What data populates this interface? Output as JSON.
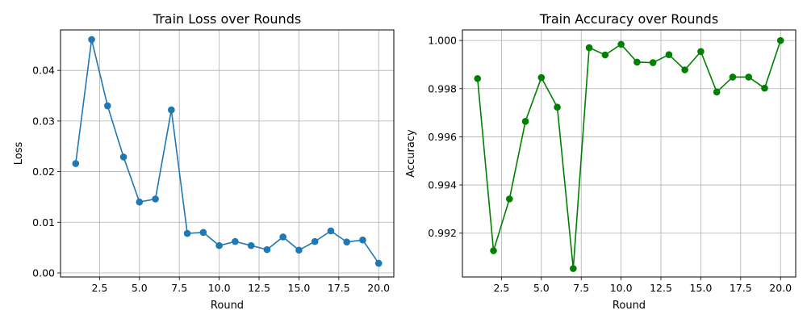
{
  "chart_data": [
    {
      "type": "line",
      "title": "Train Loss over Rounds",
      "xlabel": "Round",
      "ylabel": "Loss",
      "xlim": [
        0.05,
        20.95
      ],
      "ylim": [
        -0.0008,
        0.048
      ],
      "x_ticks": [
        2.5,
        5.0,
        7.5,
        10.0,
        12.5,
        15.0,
        17.5,
        20.0
      ],
      "x_tick_labels": [
        "2.5",
        "5.0",
        "7.5",
        "10.0",
        "12.5",
        "15.0",
        "17.5",
        "20.0"
      ],
      "y_ticks": [
        0.0,
        0.01,
        0.02,
        0.03,
        0.04
      ],
      "y_tick_labels": [
        "0.00",
        "0.01",
        "0.02",
        "0.03",
        "0.04"
      ],
      "grid": true,
      "color": "#1f77b4",
      "marker": "circle",
      "series": [
        {
          "x": [
            1,
            2,
            3,
            4,
            5,
            6,
            7,
            8,
            9,
            10,
            11,
            12,
            13,
            14,
            15,
            16,
            17,
            18,
            19,
            20
          ],
          "values": [
            0.0216,
            0.0461,
            0.033,
            0.0229,
            0.014,
            0.0146,
            0.0322,
            0.0078,
            0.008,
            0.0054,
            0.0062,
            0.0054,
            0.0046,
            0.0071,
            0.0045,
            0.0062,
            0.0083,
            0.0061,
            0.0065,
            0.0019
          ]
        }
      ]
    },
    {
      "type": "line",
      "title": "Train Accuracy over Rounds",
      "xlabel": "Round",
      "ylabel": "Accuracy",
      "xlim": [
        0.05,
        20.95
      ],
      "ylim": [
        0.99018,
        1.00044
      ],
      "x_ticks": [
        2.5,
        5.0,
        7.5,
        10.0,
        12.5,
        15.0,
        17.5,
        20.0
      ],
      "x_tick_labels": [
        "2.5",
        "5.0",
        "7.5",
        "10.0",
        "12.5",
        "15.0",
        "17.5",
        "20.0"
      ],
      "y_ticks": [
        0.992,
        0.994,
        0.996,
        0.998,
        1.0
      ],
      "y_tick_labels": [
        "0.992",
        "0.994",
        "0.996",
        "0.998",
        "1.000"
      ],
      "grid": true,
      "color": "#008000",
      "marker": "circle",
      "series": [
        {
          "x": [
            1,
            2,
            3,
            4,
            5,
            6,
            7,
            8,
            9,
            10,
            11,
            12,
            13,
            14,
            15,
            16,
            17,
            18,
            19,
            20
          ],
          "values": [
            0.99842,
            0.99127,
            0.99342,
            0.99664,
            0.99846,
            0.99723,
            0.99053,
            0.9997,
            0.9994,
            0.99984,
            0.9991,
            0.99908,
            0.99941,
            0.99878,
            0.99954,
            0.99786,
            0.99848,
            0.99848,
            0.99802,
            1.0
          ]
        }
      ]
    }
  ]
}
